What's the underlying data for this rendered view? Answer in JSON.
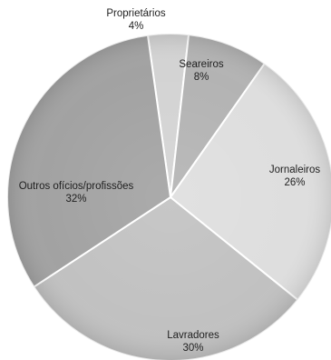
{
  "chart_data": {
    "type": "pie",
    "title": "",
    "start_angle_deg": -8,
    "direction": "clockwise",
    "slices": [
      {
        "label": "Proprietários",
        "value": 4,
        "value_text": "4%",
        "color": "#d3d3d3"
      },
      {
        "label": "Seareiros",
        "value": 8,
        "value_text": "8%",
        "color": "#b3b3b3"
      },
      {
        "label": "Jornaleiros",
        "value": 26,
        "value_text": "26%",
        "color": "#dedede"
      },
      {
        "label": "Lavradores",
        "value": 30,
        "value_text": "30%",
        "color": "#c1c1c1"
      },
      {
        "label": "Outros ofícios/profissões",
        "value": 32,
        "value_text": "32%",
        "color": "#a2a2a2"
      }
    ]
  }
}
